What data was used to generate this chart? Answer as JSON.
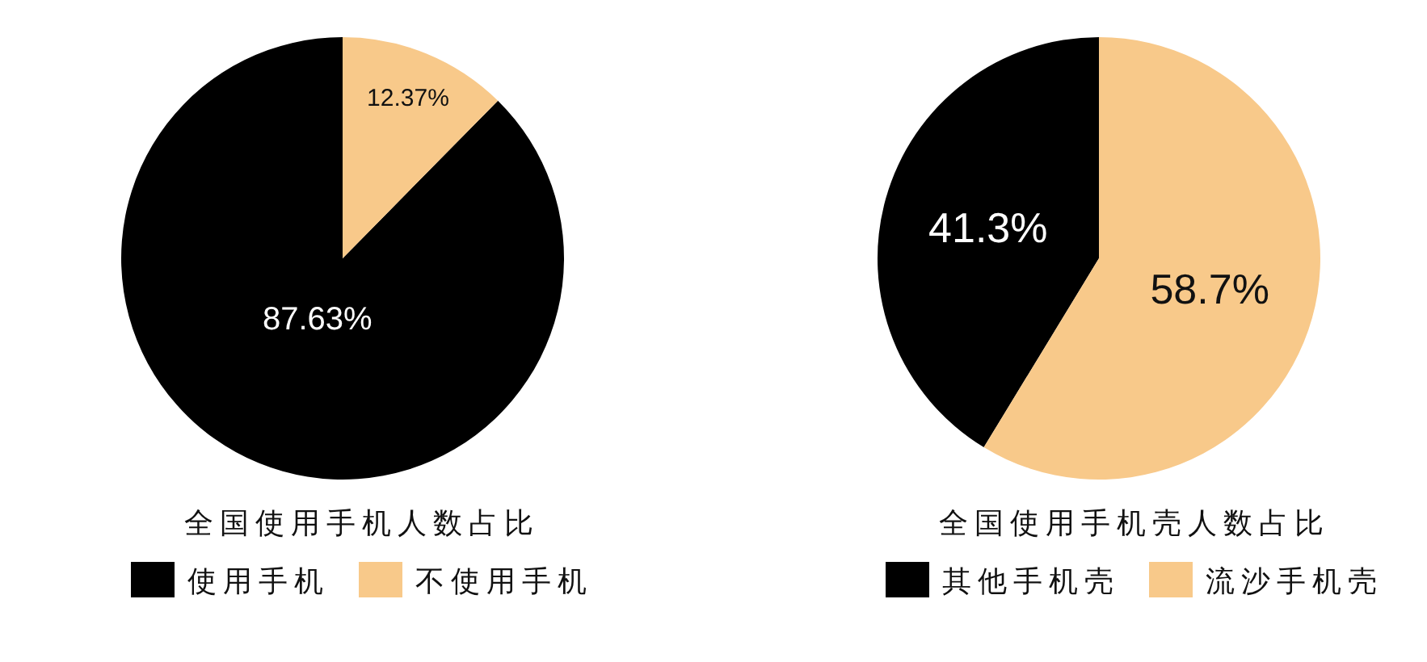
{
  "chart_data": [
    {
      "type": "pie",
      "title": "全国使用手机人数占比",
      "categories": [
        "使用手机",
        "不使用手机"
      ],
      "values": [
        87.63,
        12.37
      ],
      "colors": [
        "#000000",
        "#f8c98a"
      ],
      "value_labels": [
        "87.63%",
        "12.37%"
      ],
      "legend": "bottom"
    },
    {
      "type": "pie",
      "title": "全国使用手机壳人数占比",
      "categories": [
        "其他手机壳",
        "流沙手机壳"
      ],
      "values": [
        41.3,
        58.7
      ],
      "colors": [
        "#000000",
        "#f8c98a"
      ],
      "value_labels": [
        "41.3%",
        "58.7%"
      ],
      "legend": "bottom"
    }
  ]
}
